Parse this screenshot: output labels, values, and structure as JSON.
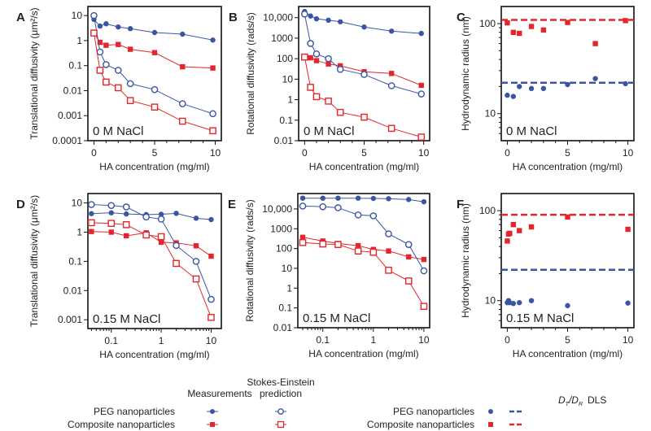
{
  "colors": {
    "peg": "#3a55a4",
    "composite": "#e3262b"
  },
  "legend": {
    "measurements": "Measurements",
    "stokes_line1": "Stokes-Einstein",
    "stokes_line2": "prediction",
    "peg": "PEG nanoparticles",
    "composite": "Composite nanoparticles",
    "dtdr_D": "D",
    "dtdr_T": "T",
    "dtdr_slash": "/D",
    "dtdr_R": "R",
    "dls": "DLS"
  },
  "chart_data": [
    {
      "panel": "A",
      "type": "line",
      "annotation": "0 M NaCl",
      "xlabel": "HA concentration (mg/ml)",
      "ylabel": "Translational diffusivity (μm²/s)",
      "xscale": "linear",
      "yscale": "log",
      "xlim": [
        -0.5,
        10.5
      ],
      "ylim": [
        0.0001,
        23
      ],
      "xticks": [
        "0",
        "5",
        "10"
      ],
      "yticks": [
        "10",
        "1",
        "0.1",
        "0.01",
        "0.001",
        "0.0001"
      ],
      "x": [
        0,
        0.5,
        1,
        2,
        3,
        5,
        7.3,
        9.8
      ],
      "series": [
        {
          "key": "peg_meas",
          "values": [
            7,
            3.8,
            4.7,
            3.5,
            3.0,
            2.1,
            1.8,
            1.05
          ]
        },
        {
          "key": "comp_meas",
          "values": [
            2,
            0.85,
            0.65,
            0.7,
            0.45,
            0.33,
            0.09,
            0.08
          ]
        },
        {
          "key": "peg_se",
          "values": [
            10,
            0.35,
            0.11,
            0.065,
            0.019,
            0.011,
            0.003,
            0.0012
          ]
        },
        {
          "key": "comp_se",
          "values": [
            2,
            0.065,
            0.022,
            0.013,
            0.004,
            0.0022,
            0.0006,
            0.00025
          ]
        }
      ]
    },
    {
      "panel": "B",
      "type": "line",
      "annotation": "0 M NaCl",
      "xlabel": "HA concentration (mg/ml)",
      "ylabel": "Rotational diffusivity (rads/s)",
      "xscale": "linear",
      "yscale": "log",
      "xlim": [
        -0.5,
        10.5
      ],
      "ylim": [
        0.01,
        35000
      ],
      "xticks": [
        "0",
        "5",
        "10"
      ],
      "yticks": [
        "10,000",
        "1000",
        "100",
        "10",
        "1",
        "0.1",
        "0.01"
      ],
      "x": [
        0,
        0.5,
        1,
        2,
        3,
        5,
        7.3,
        9.8
      ],
      "series": [
        {
          "key": "peg_meas",
          "values": [
            20000,
            12000,
            8800,
            7500,
            6300,
            3500,
            2200,
            1700
          ]
        },
        {
          "key": "comp_meas",
          "values": [
            120,
            110,
            80,
            55,
            45,
            23,
            19,
            5
          ]
        },
        {
          "key": "peg_se",
          "values": [
            15000,
            550,
            170,
            100,
            30,
            17,
            4.8,
            1.9
          ]
        },
        {
          "key": "comp_se",
          "values": [
            120,
            4,
            1.4,
            0.85,
            0.24,
            0.14,
            0.04,
            0.015
          ]
        }
      ]
    },
    {
      "panel": "C",
      "type": "scatter",
      "annotation": "0 M NaCl",
      "xlabel": "HA concentration (mg/ml)",
      "ylabel": "Hydrodynamic radius (nm)",
      "xscale": "linear",
      "yscale": "log",
      "xlim": [
        -0.5,
        10.5
      ],
      "ylim": [
        5,
        155
      ],
      "xticks": [
        "0",
        "5",
        "10"
      ],
      "yticks": [
        "100",
        "10"
      ],
      "x": [
        0,
        0.5,
        1,
        2,
        3,
        5,
        7.3,
        9.8
      ],
      "series": [
        {
          "key": "peg_dtdr",
          "values": [
            16,
            15.5,
            20,
            19,
            19,
            21,
            24.5,
            21.5
          ]
        },
        {
          "key": "comp_dtdr",
          "values": [
            102,
            80,
            78,
            93,
            85,
            103,
            60,
            108
          ]
        }
      ],
      "dls": {
        "peg": 22,
        "composite": 110
      }
    },
    {
      "panel": "D",
      "type": "line",
      "annotation": "0.15 M NaCl",
      "xlabel": "HA concentration (mg/ml)",
      "ylabel": "Translational diffusivity (μm²/s)",
      "xscale": "log",
      "yscale": "log",
      "xlim": [
        0.034,
        16
      ],
      "ylim": [
        0.0005,
        21
      ],
      "xticks": [
        "0.1",
        "1",
        "10"
      ],
      "yticks": [
        "10",
        "1",
        "0.1",
        "0.01",
        "0.001"
      ],
      "x": [
        0.04,
        0.1,
        0.2,
        0.5,
        1,
        2,
        5,
        10
      ],
      "series": [
        {
          "key": "peg_meas",
          "values": [
            4.3,
            4.6,
            4.2,
            4.0,
            4.1,
            4.4,
            3.0,
            2.7
          ]
        },
        {
          "key": "comp_meas",
          "values": [
            1.05,
            1.0,
            0.75,
            0.95,
            0.45,
            0.43,
            0.34,
            0.15
          ]
        },
        {
          "key": "peg_se",
          "values": [
            8.8,
            8.2,
            7.3,
            3.3,
            2.8,
            0.35,
            0.1,
            0.005
          ]
        },
        {
          "key": "comp_se",
          "values": [
            2.1,
            2.0,
            1.8,
            0.8,
            0.7,
            0.085,
            0.025,
            0.0012
          ]
        }
      ]
    },
    {
      "panel": "E",
      "type": "line",
      "annotation": "0.15 M NaCl",
      "xlabel": "HA concentration (mg/ml)",
      "ylabel": "Rotational diffusivity (rads/s)",
      "xscale": "log",
      "yscale": "log",
      "xlim": [
        0.032,
        13
      ],
      "ylim": [
        0.01,
        60000
      ],
      "xticks": [
        "0.1",
        "1",
        "10"
      ],
      "yticks": [
        "10,000",
        "1000",
        "100",
        "10",
        "1",
        "0.1",
        "0.01"
      ],
      "x": [
        0.04,
        0.1,
        0.2,
        0.5,
        1,
        2,
        5,
        10
      ],
      "series": [
        {
          "key": "peg_meas",
          "values": [
            35000,
            35000,
            35000,
            35000,
            34000,
            33000,
            30000,
            23000
          ]
        },
        {
          "key": "comp_meas",
          "values": [
            370,
            240,
            180,
            140,
            90,
            75,
            38,
            28
          ]
        },
        {
          "key": "peg_se",
          "values": [
            14000,
            13000,
            11500,
            5000,
            4500,
            550,
            160,
            7.5
          ]
        },
        {
          "key": "comp_se",
          "values": [
            200,
            170,
            160,
            75,
            65,
            8,
            2.3,
            0.12
          ]
        }
      ]
    },
    {
      "panel": "F",
      "type": "scatter",
      "annotation": "0.15 M NaCl",
      "xlabel": "HA concentration (mg/ml)",
      "ylabel": "Hydrodynamic radius (nm)",
      "xscale": "linear",
      "yscale": "log",
      "xlim": [
        -0.5,
        10.5
      ],
      "ylim": [
        5,
        155
      ],
      "xticks": [
        "0",
        "5",
        "10"
      ],
      "yticks": [
        "100",
        "10"
      ],
      "x": [
        0,
        0.1,
        0.2,
        0.5,
        1,
        2,
        5,
        10
      ],
      "series": [
        {
          "key": "peg_dtdr",
          "values": [
            9.5,
            10,
            9.5,
            9.3,
            9.5,
            10,
            8.8,
            9.4
          ]
        },
        {
          "key": "comp_dtdr",
          "values": [
            46,
            55,
            56,
            70,
            60,
            66,
            85,
            62
          ]
        }
      ],
      "dls": {
        "peg": 22,
        "composite": 90
      }
    }
  ]
}
